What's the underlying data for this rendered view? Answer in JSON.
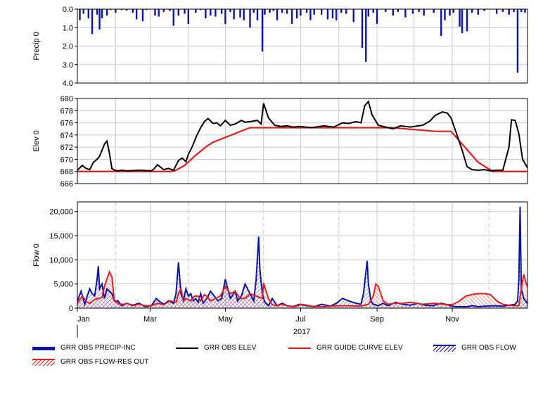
{
  "colors": {
    "precip": "#0a14a8",
    "obs_elev": "#000000",
    "guide_curve": "#e01c1c",
    "obs_flow": "#0a14a8",
    "flow_res_out": "#e01c1c",
    "grid": "#c8c8c8"
  },
  "chart_data": [
    {
      "type": "bar",
      "panel": "precip",
      "ylabel": "Precip 0",
      "ylim": [
        4.0,
        0.0
      ],
      "inverted_y": true,
      "yticks": [
        "0.0",
        "1.0",
        "2.0",
        "3.0",
        "4.0"
      ],
      "ytick_values": [
        0,
        1,
        2,
        3,
        4
      ],
      "xlim": [
        0,
        365
      ],
      "grid": true,
      "series": [
        {
          "name": "GRR OBS PRECIP-INC",
          "x": [
            2,
            5,
            9,
            12,
            16,
            18,
            20,
            24,
            27,
            31,
            36,
            40,
            45,
            48,
            53,
            56,
            63,
            66,
            70,
            75,
            78,
            82,
            87,
            90,
            96,
            100,
            104,
            108,
            112,
            117,
            120,
            124,
            127,
            132,
            135,
            140,
            143,
            146,
            150,
            152,
            156,
            159,
            162,
            166,
            170,
            174,
            178,
            181,
            186,
            189,
            192,
            198,
            203,
            207,
            210,
            214,
            218,
            224,
            231,
            234,
            236,
            240,
            243,
            250,
            256,
            260,
            266,
            272,
            277,
            281,
            289,
            295,
            298,
            302,
            305,
            310,
            312,
            316,
            320,
            325,
            330,
            340,
            345,
            350,
            354,
            357,
            360,
            363
          ],
          "values": [
            0.6,
            0.25,
            0.5,
            1.35,
            0.3,
            1.1,
            0.5,
            0.35,
            0.05,
            0.2,
            0.05,
            0.08,
            0.2,
            0.55,
            0.65,
            0.05,
            0.35,
            0.4,
            0.15,
            0.1,
            0.9,
            0.35,
            0.25,
            0.8,
            0.2,
            0.05,
            0.5,
            0.35,
            0.4,
            0.25,
            0.8,
            0.15,
            0.55,
            0.45,
            0.6,
            1.0,
            0.2,
            0.6,
            2.3,
            0.3,
            0.2,
            0.1,
            0.6,
            0.2,
            0.25,
            0.8,
            0.5,
            0.35,
            0.2,
            0.6,
            0.3,
            0.3,
            0.55,
            0.5,
            0.6,
            0.2,
            0.25,
            0.7,
            2.1,
            2.85,
            0.4,
            0.2,
            0.8,
            0.15,
            0.35,
            0.15,
            0.45,
            0.25,
            0.15,
            0.35,
            0.2,
            1.45,
            0.6,
            0.35,
            0.2,
            0.95,
            1.3,
            1.2,
            0.2,
            0.3,
            0.1,
            0.25,
            0.15,
            0.3,
            0.15,
            3.45,
            0.15,
            0.2
          ]
        }
      ]
    },
    {
      "type": "line",
      "panel": "elevation",
      "ylabel": "Elev 0",
      "ylim": [
        666,
        680
      ],
      "yticks": [
        "666",
        "668",
        "670",
        "672",
        "674",
        "676",
        "678",
        "680"
      ],
      "ytick_values": [
        666,
        668,
        670,
        672,
        674,
        676,
        678,
        680
      ],
      "xlim": [
        0,
        365
      ],
      "grid": true,
      "series": [
        {
          "name": "GRR OBS ELEV",
          "x": [
            0,
            4,
            7,
            10,
            13,
            16,
            18,
            20,
            22,
            24,
            26,
            28,
            30,
            33,
            36,
            40,
            50,
            60,
            62,
            65,
            70,
            74,
            78,
            82,
            85,
            88,
            90,
            93,
            97,
            100,
            103,
            106,
            108,
            110,
            113,
            116,
            120,
            124,
            128,
            133,
            136,
            140,
            146,
            149,
            151,
            155,
            160,
            165,
            170,
            175,
            180,
            190,
            200,
            208,
            215,
            220,
            226,
            230,
            233,
            236,
            239,
            244,
            250,
            256,
            262,
            270,
            280,
            286,
            290,
            296,
            300,
            303,
            307,
            312,
            316,
            320,
            325,
            330,
            335,
            340,
            345,
            350,
            352,
            355,
            358,
            361,
            365
          ],
          "values": [
            668.2,
            669,
            668.5,
            668.3,
            669.5,
            670,
            670.5,
            671.5,
            672.5,
            673,
            671,
            668.5,
            668.2,
            668.1,
            668.2,
            668.1,
            668.2,
            668.1,
            668.4,
            669.1,
            668.3,
            668.5,
            668.2,
            669.8,
            670.2,
            669.6,
            670.8,
            672,
            674,
            675.2,
            676.2,
            676.7,
            676.3,
            675.9,
            676,
            675.5,
            676.4,
            675.6,
            675.8,
            676.4,
            676.1,
            676.2,
            676.4,
            675.8,
            679.2,
            676.8,
            675.6,
            675.4,
            675.5,
            675.3,
            675.4,
            675.2,
            675.5,
            675.3,
            676,
            675.9,
            676.2,
            676,
            678.8,
            679.5,
            677.3,
            675.6,
            675.3,
            675,
            675.5,
            675.3,
            675.6,
            676.3,
            677.2,
            677.8,
            677.6,
            676.8,
            674.5,
            671.5,
            668.8,
            668.3,
            668.2,
            668.3,
            668.1,
            668.2,
            668.2,
            672,
            676.5,
            676.4,
            674.2,
            670,
            668.6
          ]
        },
        {
          "name": "GRR GUIDE CURVE ELEV",
          "x": [
            0,
            75,
            79,
            87,
            95,
            104,
            110,
            125,
            140,
            175,
            215,
            255,
            290,
            303,
            325,
            337,
            365
          ],
          "values": [
            668,
            668,
            668.1,
            669,
            670.5,
            672,
            672.8,
            674,
            675.2,
            675.2,
            675.2,
            675.2,
            674.6,
            674.6,
            669.5,
            668,
            668
          ]
        }
      ]
    },
    {
      "type": "area",
      "panel": "flow",
      "ylabel": "Flow 0",
      "ylim": [
        0,
        22000
      ],
      "yticks": [
        "0",
        "5,000",
        "10,000",
        "15,000",
        "20,000"
      ],
      "ytick_values": [
        0,
        5000,
        10000,
        15000,
        20000
      ],
      "xlim": [
        0,
        365
      ],
      "grid": true,
      "xtick_labels": [
        "Jan",
        "Mar",
        "May",
        "Jul",
        "Sep",
        "Nov"
      ],
      "xtick_days": [
        0,
        59,
        120,
        181,
        243,
        304
      ],
      "xlabel_year": "2017",
      "series": [
        {
          "name": "GRR OBS FLOW",
          "x": [
            0,
            3,
            6,
            8,
            10,
            12,
            14,
            16,
            17,
            18,
            20,
            22,
            24,
            26,
            28,
            30,
            33,
            36,
            40,
            45,
            50,
            55,
            60,
            64,
            66,
            70,
            74,
            78,
            80,
            82,
            84,
            86,
            88,
            90,
            92,
            94,
            96,
            98,
            100,
            102,
            105,
            108,
            111,
            114,
            117,
            120,
            124,
            128,
            130,
            133,
            136,
            140,
            143,
            145,
            147,
            148,
            150,
            152,
            155,
            158,
            162,
            166,
            170,
            175,
            180,
            186,
            192,
            198,
            205,
            210,
            215,
            220,
            226,
            230,
            232,
            235,
            236,
            238,
            240,
            244,
            248,
            252,
            258,
            264,
            270,
            276,
            282,
            288,
            295,
            300,
            304,
            308,
            312,
            316,
            320,
            325,
            330,
            338,
            345,
            350,
            355,
            357,
            358,
            359,
            360,
            362,
            365
          ],
          "values": [
            1500,
            3500,
            800,
            2500,
            4000,
            3000,
            2500,
            6000,
            8700,
            4000,
            5000,
            2000,
            4000,
            3500,
            3000,
            1500,
            1500,
            500,
            1000,
            600,
            1000,
            300,
            500,
            2000,
            1500,
            800,
            1500,
            1000,
            3000,
            9500,
            3000,
            1500,
            4000,
            2500,
            3000,
            1500,
            2000,
            1200,
            3000,
            1000,
            2000,
            3500,
            2500,
            1500,
            2000,
            6000,
            2000,
            3500,
            1500,
            2500,
            5000,
            3000,
            1500,
            6000,
            14800,
            8000,
            3000,
            1200,
            500,
            2000,
            500,
            1000,
            500,
            300,
            800,
            500,
            300,
            800,
            400,
            1000,
            2000,
            1500,
            1000,
            800,
            3000,
            9800,
            5000,
            1500,
            800,
            500,
            1000,
            500,
            1200,
            800,
            600,
            1000,
            600,
            500,
            1000,
            700,
            400,
            300,
            300,
            300,
            500,
            300,
            400,
            500,
            400,
            600,
            800,
            1500,
            6000,
            21000,
            4000,
            2000,
            1000
          ]
        },
        {
          "name": "GRR OBS FLOW-RES OUT",
          "x": [
            0,
            4,
            8,
            10,
            14,
            17,
            20,
            22,
            26,
            28,
            30,
            34,
            38,
            40,
            45,
            50,
            55,
            60,
            65,
            70,
            75,
            80,
            82,
            84,
            86,
            88,
            92,
            95,
            98,
            100,
            103,
            105,
            108,
            112,
            116,
            120,
            124,
            128,
            132,
            136,
            140,
            145,
            150,
            151,
            153,
            155,
            158,
            162,
            166,
            170,
            176,
            182,
            190,
            200,
            210,
            220,
            230,
            236,
            240,
            242,
            244,
            248,
            252,
            258,
            264,
            270,
            280,
            290,
            300,
            305,
            310,
            315,
            320,
            325,
            330,
            335,
            340,
            345,
            350,
            355,
            358,
            360,
            362,
            364,
            365
          ],
          "values": [
            1000,
            2500,
            1200,
            1000,
            1800,
            2000,
            2200,
            4500,
            7500,
            6500,
            1500,
            800,
            800,
            1000,
            500,
            800,
            500,
            500,
            1000,
            700,
            1500,
            1200,
            3000,
            4000,
            1500,
            2000,
            1500,
            2500,
            2500,
            1500,
            2800,
            2500,
            1500,
            2000,
            2500,
            4500,
            3000,
            3500,
            2000,
            2000,
            3000,
            2500,
            2000,
            5200,
            3500,
            2000,
            700,
            500,
            800,
            500,
            300,
            800,
            400,
            300,
            500,
            500,
            400,
            800,
            2500,
            5000,
            4500,
            1500,
            800,
            1000,
            1000,
            1200,
            800,
            1000,
            700,
            800,
            1500,
            2500,
            2800,
            3000,
            3000,
            2800,
            1500,
            800,
            600,
            500,
            500,
            4000,
            7000,
            5000,
            4500
          ]
        }
      ]
    }
  ],
  "legend": [
    {
      "label": "GRR OBS PRECIP-INC",
      "style": "precip"
    },
    {
      "label": "GRR OBS ELEV",
      "style": "elev"
    },
    {
      "label": "GRR GUIDE CURVE ELEV",
      "style": "guide"
    },
    {
      "label": "GRR OBS FLOW",
      "style": "flow"
    },
    {
      "label": "GRR OBS FLOW-RES OUT",
      "style": "flowres"
    }
  ]
}
